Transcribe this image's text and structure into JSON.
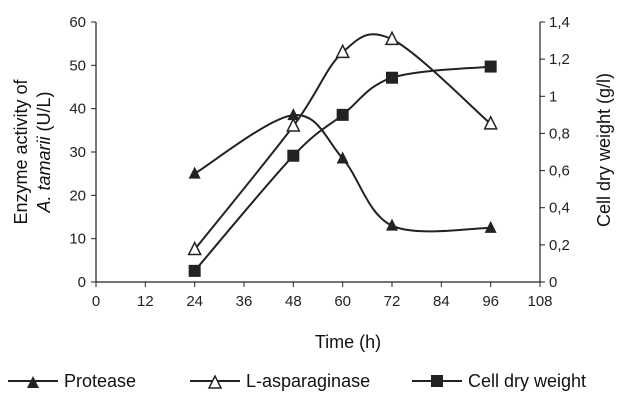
{
  "chart_data": {
    "type": "line",
    "xlabel": "Time (h)",
    "ylabel_left_prefix": "Enzyme activity of",
    "ylabel_left_species": "A. tamarii",
    "ylabel_left_unit": "(U/L)",
    "ylabel_right": "Cell dry weight (g/l)",
    "xlim": [
      0,
      108
    ],
    "ylim_left": [
      0,
      60
    ],
    "ylim_right": [
      0,
      1.4
    ],
    "x_ticks": [
      "0",
      "12",
      "24",
      "36",
      "48",
      "60",
      "72",
      "84",
      "96",
      "108"
    ],
    "y_left_ticks": [
      "0",
      "10",
      "20",
      "30",
      "40",
      "50",
      "60"
    ],
    "y_right_ticks": [
      "0",
      "0,2",
      "0,4",
      "0,6",
      "0,8",
      "1",
      "1,2",
      "1,4"
    ],
    "legend_position": "bottom",
    "series": [
      {
        "name": "Protease",
        "axis": "left",
        "marker": "filled-triangle",
        "x": [
          24,
          48,
          60,
          72,
          96
        ],
        "y": [
          25,
          38.5,
          28.5,
          13,
          12.5
        ]
      },
      {
        "name": "L-asparaginase",
        "axis": "left",
        "marker": "open-triangle",
        "x": [
          24,
          48,
          60,
          72,
          96
        ],
        "y": [
          7.5,
          36,
          53,
          56,
          36.5
        ]
      },
      {
        "name": "Cell dry weight",
        "axis": "right",
        "marker": "filled-square",
        "x": [
          24,
          48,
          60,
          72,
          96
        ],
        "y": [
          0.06,
          0.68,
          0.9,
          1.1,
          1.16
        ]
      }
    ]
  }
}
